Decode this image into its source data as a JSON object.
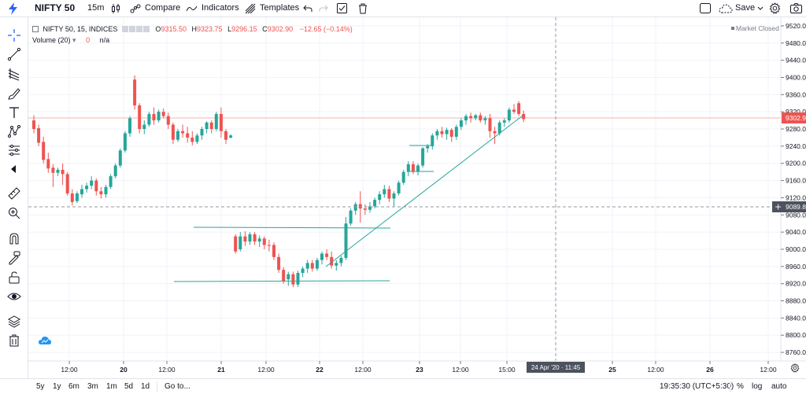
{
  "toolbar": {
    "symbol": "NIFTY 50",
    "interval": "15m",
    "compare": "Compare",
    "indicators": "Indicators",
    "templates": "Templates",
    "save": "Save"
  },
  "legend": {
    "title": "NIFTY 50, 15, INDICES",
    "open_label": "O",
    "open": "9315.50",
    "high_label": "H",
    "high": "9323.75",
    "low_label": "L",
    "low": "9296.15",
    "close_label": "C",
    "close": "9302.90",
    "change": "−12.65 (−0.14%)",
    "volume_title": "Volume (20)",
    "volume_value": "0",
    "volume_na": "n/a",
    "market_status": "Market Closed"
  },
  "price_axis": {
    "labels": [
      "9520.00",
      "9480.00",
      "9440.00",
      "9400.00",
      "9360.00",
      "9320.00",
      "9280.00",
      "9240.00",
      "9200.00",
      "9160.00",
      "9120.00",
      "9080.00",
      "9040.00",
      "9000.00",
      "8960.00",
      "8920.00",
      "8880.00",
      "8840.00",
      "8800.00",
      "8760.00"
    ],
    "current_price": "9302.90",
    "crosshair_price": "9089.85"
  },
  "time_axis": {
    "labels": [
      "12:00",
      "20",
      "12:00",
      "21",
      "12:00",
      "22",
      "12:00",
      "23",
      "12:00",
      "15:00",
      "25",
      "12:00",
      "26",
      "12:00"
    ],
    "crosshair_time": "24 Apr '20 · 11:45"
  },
  "bottom_bar": {
    "ranges": [
      "5y",
      "1y",
      "6m",
      "3m",
      "1m",
      "5d",
      "1d"
    ],
    "goto": "Go to...",
    "clock": "19:35:30 (UTC+5:30)",
    "percent": "%",
    "log": "log",
    "auto": "auto"
  },
  "colors": {
    "up": "#26a69a",
    "down": "#ef5350",
    "accent": "#2962ff",
    "grid": "#f0f3fa"
  },
  "chart_data": {
    "type": "candlestick",
    "title": "NIFTY 50, 15, INDICES",
    "y_range": [
      8740,
      9540
    ],
    "candles": [
      {
        "o": 9300,
        "h": 9312,
        "l": 9270,
        "c": 9280
      },
      {
        "o": 9282,
        "h": 9290,
        "l": 9240,
        "c": 9248
      },
      {
        "o": 9250,
        "h": 9262,
        "l": 9200,
        "c": 9208
      },
      {
        "o": 9210,
        "h": 9225,
        "l": 9178,
        "c": 9188
      },
      {
        "o": 9190,
        "h": 9198,
        "l": 9145,
        "c": 9178
      },
      {
        "o": 9178,
        "h": 9190,
        "l": 9170,
        "c": 9185
      },
      {
        "o": 9185,
        "h": 9200,
        "l": 9150,
        "c": 9175
      },
      {
        "o": 9175,
        "h": 9180,
        "l": 9125,
        "c": 9130
      },
      {
        "o": 9130,
        "h": 9140,
        "l": 9102,
        "c": 9110
      },
      {
        "o": 9112,
        "h": 9135,
        "l": 9108,
        "c": 9130
      },
      {
        "o": 9128,
        "h": 9150,
        "l": 9120,
        "c": 9140
      },
      {
        "o": 9140,
        "h": 9155,
        "l": 9132,
        "c": 9148
      },
      {
        "o": 9148,
        "h": 9170,
        "l": 9140,
        "c": 9160
      },
      {
        "o": 9160,
        "h": 9165,
        "l": 9125,
        "c": 9135
      },
      {
        "o": 9135,
        "h": 9145,
        "l": 9118,
        "c": 9128
      },
      {
        "o": 9128,
        "h": 9150,
        "l": 9120,
        "c": 9145
      },
      {
        "o": 9145,
        "h": 9175,
        "l": 9140,
        "c": 9170
      },
      {
        "o": 9170,
        "h": 9200,
        "l": 9165,
        "c": 9195
      },
      {
        "o": 9195,
        "h": 9235,
        "l": 9190,
        "c": 9230
      },
      {
        "o": 9230,
        "h": 9275,
        "l": 9225,
        "c": 9270
      },
      {
        "o": 9270,
        "h": 9310,
        "l": 9262,
        "c": 9305
      },
      {
        "o": 9395,
        "h": 9405,
        "l": 9325,
        "c": 9335
      },
      {
        "o": 9335,
        "h": 9340,
        "l": 9270,
        "c": 9280
      },
      {
        "o": 9280,
        "h": 9300,
        "l": 9268,
        "c": 9290
      },
      {
        "o": 9290,
        "h": 9320,
        "l": 9285,
        "c": 9315
      },
      {
        "o": 9315,
        "h": 9330,
        "l": 9290,
        "c": 9300
      },
      {
        "o": 9300,
        "h": 9325,
        "l": 9295,
        "c": 9320
      },
      {
        "o": 9320,
        "h": 9328,
        "l": 9305,
        "c": 9310
      },
      {
        "o": 9310,
        "h": 9318,
        "l": 9280,
        "c": 9290
      },
      {
        "o": 9290,
        "h": 9295,
        "l": 9245,
        "c": 9255
      },
      {
        "o": 9255,
        "h": 9280,
        "l": 9250,
        "c": 9275
      },
      {
        "o": 9275,
        "h": 9290,
        "l": 9260,
        "c": 9270
      },
      {
        "o": 9270,
        "h": 9285,
        "l": 9248,
        "c": 9260
      },
      {
        "o": 9260,
        "h": 9275,
        "l": 9242,
        "c": 9250
      },
      {
        "o": 9250,
        "h": 9270,
        "l": 9245,
        "c": 9265
      },
      {
        "o": 9265,
        "h": 9285,
        "l": 9255,
        "c": 9280
      },
      {
        "o": 9280,
        "h": 9298,
        "l": 9270,
        "c": 9295
      },
      {
        "o": 9295,
        "h": 9300,
        "l": 9270,
        "c": 9280
      },
      {
        "o": 9280,
        "h": 9320,
        "l": 9275,
        "c": 9315
      },
      {
        "o": 9315,
        "h": 9330,
        "l": 9260,
        "c": 9275
      },
      {
        "o": 9275,
        "h": 9280,
        "l": 9245,
        "c": 9255
      },
      {
        "o": 9260,
        "h": 9268,
        "l": 9258,
        "c": 9265
      },
      {
        "o": 9030,
        "h": 9035,
        "l": 8990,
        "c": 8995
      },
      {
        "o": 9000,
        "h": 9040,
        "l": 8995,
        "c": 9030
      },
      {
        "o": 9030,
        "h": 9042,
        "l": 9008,
        "c": 9018
      },
      {
        "o": 9018,
        "h": 9040,
        "l": 9010,
        "c": 9035
      },
      {
        "o": 9035,
        "h": 9040,
        "l": 9010,
        "c": 9018
      },
      {
        "o": 9018,
        "h": 9032,
        "l": 9005,
        "c": 9025
      },
      {
        "o": 9025,
        "h": 9030,
        "l": 9000,
        "c": 9010
      },
      {
        "o": 9010,
        "h": 9022,
        "l": 8995,
        "c": 9008
      },
      {
        "o": 9010,
        "h": 9016,
        "l": 8975,
        "c": 8982
      },
      {
        "o": 8982,
        "h": 8990,
        "l": 8945,
        "c": 8952
      },
      {
        "o": 8952,
        "h": 8958,
        "l": 8920,
        "c": 8925
      },
      {
        "o": 8930,
        "h": 8948,
        "l": 8915,
        "c": 8942
      },
      {
        "o": 8942,
        "h": 8948,
        "l": 8912,
        "c": 8918
      },
      {
        "o": 8918,
        "h": 8950,
        "l": 8912,
        "c": 8945
      },
      {
        "o": 8945,
        "h": 8960,
        "l": 8935,
        "c": 8955
      },
      {
        "o": 8955,
        "h": 8975,
        "l": 8945,
        "c": 8968
      },
      {
        "o": 8968,
        "h": 8975,
        "l": 8948,
        "c": 8955
      },
      {
        "o": 8955,
        "h": 8980,
        "l": 8950,
        "c": 8975
      },
      {
        "o": 8975,
        "h": 8995,
        "l": 8965,
        "c": 8990
      },
      {
        "o": 8990,
        "h": 9000,
        "l": 8975,
        "c": 8982
      },
      {
        "o": 8982,
        "h": 8995,
        "l": 8955,
        "c": 8962
      },
      {
        "o": 8962,
        "h": 8975,
        "l": 8950,
        "c": 8968
      },
      {
        "o": 8968,
        "h": 8985,
        "l": 8960,
        "c": 8980
      },
      {
        "o": 8980,
        "h": 9075,
        "l": 8975,
        "c": 9060
      },
      {
        "o": 9060,
        "h": 9095,
        "l": 9055,
        "c": 9090
      },
      {
        "o": 9090,
        "h": 9110,
        "l": 9080,
        "c": 9105
      },
      {
        "o": 9105,
        "h": 9135,
        "l": 9062,
        "c": 9095
      },
      {
        "o": 9095,
        "h": 9105,
        "l": 9080,
        "c": 9092
      },
      {
        "o": 9092,
        "h": 9110,
        "l": 9085,
        "c": 9100
      },
      {
        "o": 9100,
        "h": 9120,
        "l": 9095,
        "c": 9115
      },
      {
        "o": 9115,
        "h": 9135,
        "l": 9105,
        "c": 9128
      },
      {
        "o": 9128,
        "h": 9150,
        "l": 9120,
        "c": 9140
      },
      {
        "o": 9140,
        "h": 9148,
        "l": 9110,
        "c": 9118
      },
      {
        "o": 9118,
        "h": 9135,
        "l": 9100,
        "c": 9130
      },
      {
        "o": 9130,
        "h": 9160,
        "l": 9125,
        "c": 9155
      },
      {
        "o": 9155,
        "h": 9185,
        "l": 9150,
        "c": 9180
      },
      {
        "o": 9180,
        "h": 9205,
        "l": 9170,
        "c": 9198
      },
      {
        "o": 9198,
        "h": 9205,
        "l": 9175,
        "c": 9180
      },
      {
        "o": 9180,
        "h": 9200,
        "l": 9172,
        "c": 9195
      },
      {
        "o": 9195,
        "h": 9238,
        "l": 9190,
        "c": 9235
      },
      {
        "o": 9235,
        "h": 9245,
        "l": 9225,
        "c": 9240
      },
      {
        "o": 9240,
        "h": 9270,
        "l": 9232,
        "c": 9265
      },
      {
        "o": 9265,
        "h": 9280,
        "l": 9255,
        "c": 9275
      },
      {
        "o": 9275,
        "h": 9285,
        "l": 9260,
        "c": 9268
      },
      {
        "o": 9268,
        "h": 9283,
        "l": 9255,
        "c": 9278
      },
      {
        "o": 9278,
        "h": 9282,
        "l": 9250,
        "c": 9262
      },
      {
        "o": 9262,
        "h": 9290,
        "l": 9255,
        "c": 9285
      },
      {
        "o": 9285,
        "h": 9305,
        "l": 9278,
        "c": 9300
      },
      {
        "o": 9300,
        "h": 9315,
        "l": 9290,
        "c": 9310
      },
      {
        "o": 9310,
        "h": 9318,
        "l": 9295,
        "c": 9305
      },
      {
        "o": 9305,
        "h": 9315,
        "l": 9300,
        "c": 9312
      },
      {
        "o": 9312,
        "h": 9318,
        "l": 9295,
        "c": 9300
      },
      {
        "o": 9300,
        "h": 9310,
        "l": 9290,
        "c": 9305
      },
      {
        "o": 9305,
        "h": 9315,
        "l": 9260,
        "c": 9275
      },
      {
        "o": 9275,
        "h": 9285,
        "l": 9245,
        "c": 9270
      },
      {
        "o": 9270,
        "h": 9300,
        "l": 9265,
        "c": 9295
      },
      {
        "o": 9295,
        "h": 9305,
        "l": 9285,
        "c": 9300
      },
      {
        "o": 9300,
        "h": 9330,
        "l": 9295,
        "c": 9325
      },
      {
        "o": 9325,
        "h": 9338,
        "l": 9315,
        "c": 9320
      },
      {
        "o": 9340,
        "h": 9345,
        "l": 9310,
        "c": 9315
      },
      {
        "o": 9315,
        "h": 9323,
        "l": 9296,
        "c": 9303
      }
    ]
  }
}
